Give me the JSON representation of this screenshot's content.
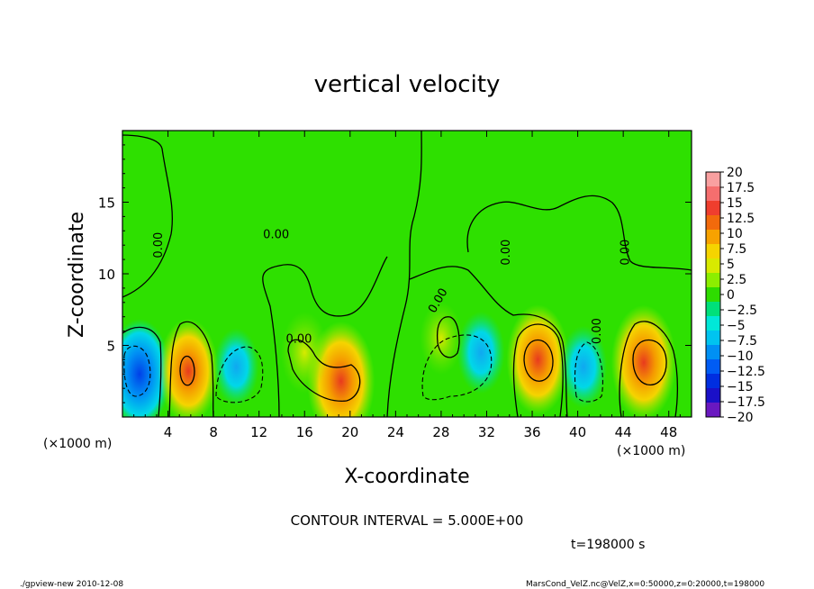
{
  "chart_data": {
    "type": "heatmap",
    "title": "vertical velocity",
    "xlabel": "X-coordinate",
    "ylabel": "Z-coordinate",
    "x_unit_left": "(×1000 m)",
    "x_unit_right": "(×1000 m)",
    "xlim": [
      0,
      50
    ],
    "ylim": [
      0,
      20
    ],
    "x_ticks": [
      4,
      8,
      12,
      16,
      20,
      24,
      28,
      32,
      36,
      40,
      44,
      48
    ],
    "y_ticks": [
      5,
      10,
      15
    ],
    "colorbar_ticks": [
      20,
      17.5,
      15,
      12.5,
      10,
      7.5,
      5,
      2.5,
      0,
      -2.5,
      -5,
      -7.5,
      -10,
      -12.5,
      -15,
      -17.5,
      -20
    ],
    "colorbar_labels": [
      "20",
      "17.5",
      "15",
      "12.5",
      "10",
      "7.5",
      "5",
      "2.5",
      "0",
      "−2.5",
      "−5",
      "−7.5",
      "−10",
      "−12.5",
      "−15",
      "−17.5",
      "−20"
    ],
    "colorbar_colors": [
      "#f9a0a0",
      "#f56e6e",
      "#ef3e2e",
      "#f26a0c",
      "#f7a200",
      "#f5d400",
      "#d8ea00",
      "#8cee00",
      "#2edc00",
      "#00e07a",
      "#00e8d8",
      "#00c4f0",
      "#0090f4",
      "#005cf4",
      "#002ee0",
      "#1a10c8",
      "#6a18c0"
    ],
    "contour_labels": [
      "0.00",
      "0.00",
      "0.00",
      "0.00",
      "0.00",
      "0.00",
      "0.00"
    ],
    "contour_interval_text": "CONTOUR INTERVAL = 5.000E+00",
    "time_text": "t=198000 s",
    "features": [
      {
        "x": 1.5,
        "z": 3.0,
        "value": -12
      },
      {
        "x": 5.8,
        "z": 3.2,
        "value": 11
      },
      {
        "x": 10.0,
        "z": 3.5,
        "value": -5
      },
      {
        "x": 19.2,
        "z": 2.5,
        "value": 14
      },
      {
        "x": 16.0,
        "z": 4.5,
        "value": 6
      },
      {
        "x": 28.0,
        "z": 5.5,
        "value": 4
      },
      {
        "x": 31.5,
        "z": 4.5,
        "value": -6
      },
      {
        "x": 36.5,
        "z": 4.0,
        "value": 12
      },
      {
        "x": 40.5,
        "z": 3.5,
        "value": -6
      },
      {
        "x": 45.8,
        "z": 3.8,
        "value": 13
      }
    ]
  },
  "footer": {
    "left": "./gpview-new   2010-12-08",
    "right": "MarsCond_VelZ.nc@VelZ,x=0:50000,z=0:20000,t=198000"
  }
}
